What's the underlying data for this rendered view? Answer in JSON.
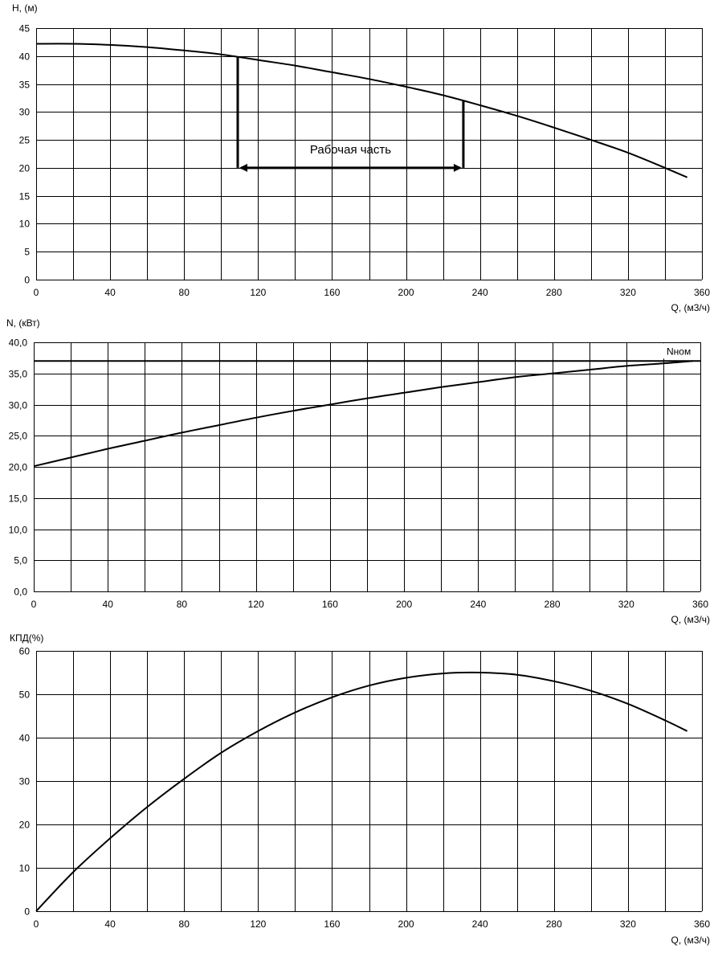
{
  "chart_data": [
    {
      "type": "line",
      "ylabel": "Н, (м)",
      "xlabel": "Q, (м3/ч)",
      "xlim": [
        0,
        360
      ],
      "ylim": [
        0,
        45
      ],
      "x_ticks": [
        "0",
        "40",
        "80",
        "120",
        "160",
        "200",
        "240",
        "280",
        "320",
        "360"
      ],
      "y_ticks": [
        "0",
        "5",
        "10",
        "15",
        "20",
        "25",
        "30",
        "35",
        "40",
        "45"
      ],
      "grid": true,
      "series": [
        {
          "x": [
            0,
            20,
            40,
            60,
            80,
            100,
            120,
            140,
            160,
            180,
            200,
            220,
            240,
            260,
            280,
            300,
            320,
            340,
            352
          ],
          "y": [
            42.2,
            42.2,
            42.0,
            41.6,
            41.0,
            40.3,
            39.3,
            38.3,
            37.1,
            35.9,
            34.5,
            33.0,
            31.2,
            29.3,
            27.2,
            25.0,
            22.7,
            20.0,
            18.3
          ]
        }
      ],
      "annotations": {
        "working_range_label": "Рабочая часть",
        "q_min": 109,
        "q_max": 231,
        "h_min_line": 39.8,
        "h_max_line": 32.0,
        "arrow_level": 20
      }
    },
    {
      "type": "line",
      "ylabel": "N, (кВт)",
      "xlabel": "Q, (м3/ч)",
      "xlim": [
        0,
        360
      ],
      "ylim": [
        0,
        40
      ],
      "x_ticks": [
        "0",
        "40",
        "80",
        "120",
        "160",
        "200",
        "240",
        "280",
        "320",
        "360"
      ],
      "y_ticks": [
        "0,0",
        "5,0",
        "10,0",
        "15,0",
        "20,0",
        "25,0",
        "30,0",
        "35,0",
        "40,0"
      ],
      "grid": true,
      "series": [
        {
          "x": [
            0,
            20,
            40,
            60,
            80,
            100,
            120,
            140,
            160,
            180,
            200,
            220,
            240,
            260,
            280,
            300,
            320,
            340,
            356
          ],
          "y": [
            20.1,
            21.5,
            22.9,
            24.2,
            25.5,
            26.7,
            27.9,
            29.0,
            30.0,
            31.0,
            31.9,
            32.8,
            33.6,
            34.4,
            35.0,
            35.6,
            36.2,
            36.6,
            37.0
          ]
        },
        {
          "name": "Nном",
          "x": [
            0,
            360
          ],
          "y": [
            37.0,
            37.0
          ]
        }
      ]
    },
    {
      "type": "line",
      "ylabel": "КПД(%)",
      "xlabel": "Q, (м3/ч)",
      "xlim": [
        0,
        360
      ],
      "ylim": [
        0,
        60
      ],
      "x_ticks": [
        "0",
        "40",
        "80",
        "120",
        "160",
        "200",
        "240",
        "280",
        "320",
        "360"
      ],
      "y_ticks": [
        "0",
        "10",
        "20",
        "30",
        "40",
        "50",
        "60"
      ],
      "grid": true,
      "series": [
        {
          "x": [
            0,
            20,
            40,
            60,
            80,
            100,
            120,
            140,
            160,
            180,
            200,
            220,
            240,
            260,
            280,
            300,
            320,
            340,
            352
          ],
          "y": [
            0,
            9.0,
            16.8,
            24.0,
            30.5,
            36.5,
            41.5,
            45.8,
            49.3,
            52.0,
            53.8,
            54.8,
            55.0,
            54.5,
            53.0,
            50.8,
            47.8,
            44.0,
            41.5
          ]
        }
      ]
    }
  ]
}
